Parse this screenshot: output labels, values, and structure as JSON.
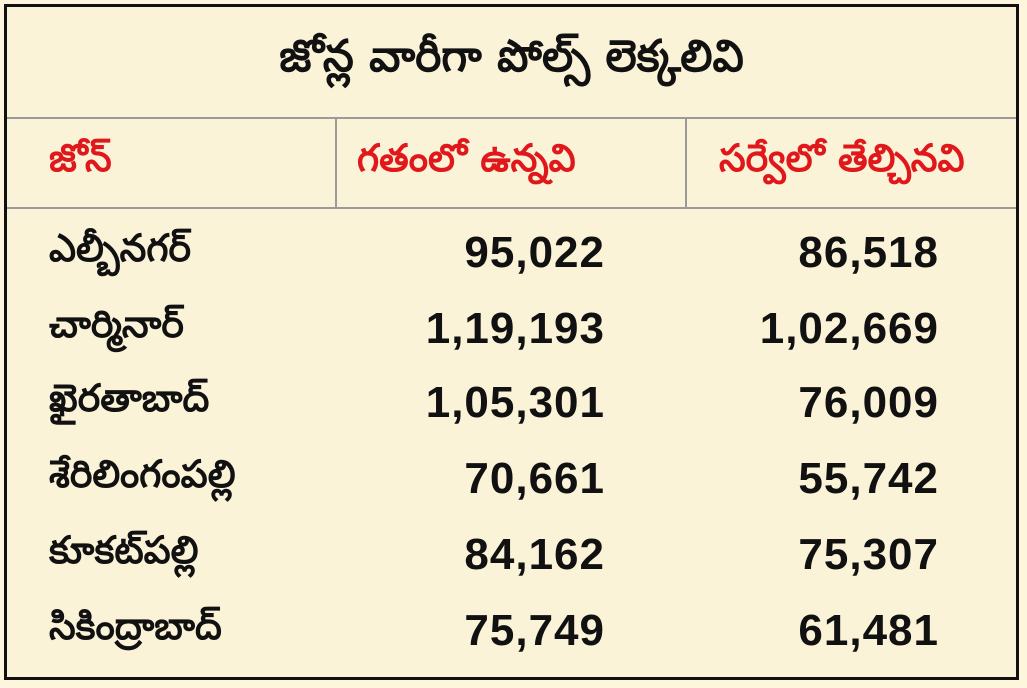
{
  "title": "జోన్ల వారీగా పోల్స్ లెక్కలివి",
  "headers": {
    "zone": "జోన్",
    "previous": "గతంలో ఉన్నవి",
    "survey": "సర్వేలో తేల్చినవి"
  },
  "rows": [
    {
      "zone": "ఎల్బీనగర్",
      "previous": "95,022",
      "survey": "86,518"
    },
    {
      "zone": "చార్మినార్",
      "previous": "1,19,193",
      "survey": "1,02,669"
    },
    {
      "zone": "ఖైరతాబాద్",
      "previous": "1,05,301",
      "survey": "76,009"
    },
    {
      "zone": "శేరిలింగంపల్లి",
      "previous": "70,661",
      "survey": "55,742"
    },
    {
      "zone": "కూకట్‌పల్లి",
      "previous": "84,162",
      "survey": "75,307"
    },
    {
      "zone": "సికింద్రాబాద్",
      "previous": "75,749",
      "survey": "61,481"
    }
  ],
  "colors": {
    "background": "#fbf3d8",
    "header_text": "#e0181c",
    "body_text": "#111111",
    "rule": "#9a9a9a"
  }
}
